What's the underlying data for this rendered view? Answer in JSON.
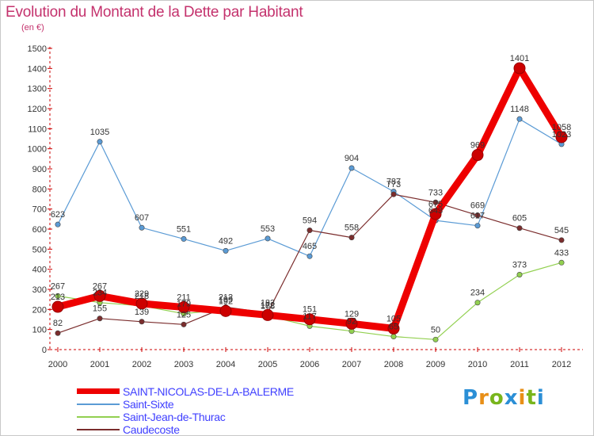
{
  "chart_data": {
    "type": "line",
    "title": "Evolution du Montant de la Dette par Habitant",
    "subtitle": "(en €)",
    "x": [
      "2000",
      "2001",
      "2002",
      "2003",
      "2004",
      "2005",
      "2006",
      "2007",
      "2008",
      "2009",
      "2010",
      "2011",
      "2012"
    ],
    "ylim": [
      0,
      1500
    ],
    "yticks": [
      0,
      100,
      200,
      300,
      400,
      500,
      600,
      700,
      800,
      900,
      1000,
      1100,
      1200,
      1300,
      1400,
      1500
    ],
    "grid": false,
    "legend_position": "bottom-left",
    "series": [
      {
        "name": "SAINT-NICOLAS-DE-LA-BALERME",
        "color": "#ee0000",
        "emphasis": true,
        "values": [
          213,
          267,
          229,
          211,
          192,
          172,
          151,
          129,
          105,
          675,
          969,
          1401,
          1058
        ]
      },
      {
        "name": "Saint-Sixte",
        "color": "#5b9bd5",
        "values": [
          623,
          1035,
          607,
          551,
          492,
          553,
          465,
          904,
          787,
          643,
          617,
          1148,
          1023
        ]
      },
      {
        "name": "Saint-Jean-de-Thurac",
        "color": "#92d050",
        "values": [
          267,
          234,
          218,
          179,
          199,
          168,
          117,
          92,
          65,
          50,
          234,
          373,
          433
        ]
      },
      {
        "name": "Caudecoste",
        "color": "#7b2d2d",
        "values": [
          82,
          155,
          139,
          125,
          212,
          183,
          594,
          558,
          773,
          733,
          669,
          605,
          545
        ]
      }
    ]
  },
  "legend": {
    "items": [
      {
        "label": "SAINT-NICOLAS-DE-LA-BALERME"
      },
      {
        "label": "Saint-Sixte"
      },
      {
        "label": "Saint-Jean-de-Thurac"
      },
      {
        "label": "Caudecoste"
      }
    ]
  },
  "brand": {
    "letters": [
      "P",
      "r",
      "o",
      "x",
      "i",
      "t",
      "i"
    ],
    "colors": [
      "#2b8fd6",
      "#e88f17",
      "#78b51c",
      "#2b8fd6",
      "#e88f17",
      "#78b51c",
      "#2b8fd6"
    ]
  },
  "colors": {
    "title": "#c4326d",
    "legend_text": "#4040ff"
  }
}
